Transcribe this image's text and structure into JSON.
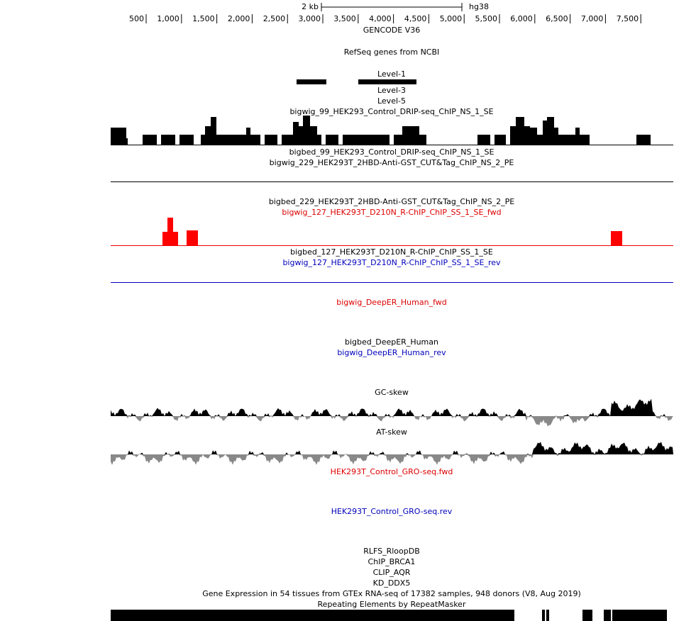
{
  "ruler": {
    "scale": "2 kb",
    "assembly": "hg38",
    "ticks": [
      "500",
      "1,000",
      "1,500",
      "2,000",
      "2,500",
      "3,000",
      "3,500",
      "4,000",
      "4,500",
      "5,000",
      "5,500",
      "6,000",
      "6,500",
      "7,000",
      "7,500"
    ]
  },
  "tracks": [
    {
      "label": "GENCODE V36",
      "color": "#000000"
    },
    {
      "label": "RefSeq genes from NCBI",
      "color": "#000000"
    },
    {
      "label": "Level-1",
      "color": "#000000"
    },
    {
      "label": "Level-3",
      "color": "#000000"
    },
    {
      "label": "Level-5",
      "color": "#000000"
    },
    {
      "label": "bigwig_99_HEK293_Control_DRIP-seq_ChIP_NS_1_SE",
      "color": "#000000"
    },
    {
      "label": "bigbed_99_HEK293_Control_DRIP-seq_ChIP_NS_1_SE",
      "color": "#000000"
    },
    {
      "label": "bigwig_229_HEK293T_2HBD-Anti-GST_CUT&Tag_ChIP_NS_2_PE",
      "color": "#000000"
    },
    {
      "label": "bigbed_229_HEK293T_2HBD-Anti-GST_CUT&Tag_ChIP_NS_2_PE",
      "color": "#000000"
    },
    {
      "label": "bigwig_127_HEK293T_D210N_R-ChIP_ChIP_SS_1_SE_fwd",
      "color": "#dd0000"
    },
    {
      "label": "bigbed_127_HEK293T_D210N_R-ChIP_ChIP_SS_1_SE",
      "color": "#000000"
    },
    {
      "label": "bigwig_127_HEK293T_D210N_R-ChIP_ChIP_SS_1_SE_rev",
      "color": "#0000bb"
    },
    {
      "label": "bigwig_DeepER_Human_fwd",
      "color": "#dd0000"
    },
    {
      "label": "bigbed_DeepER_Human",
      "color": "#000000"
    },
    {
      "label": "bigwig_DeepER_Human_rev",
      "color": "#0000bb"
    },
    {
      "label": "GC-skew",
      "color": "#000000"
    },
    {
      "label": "AT-skew",
      "color": "#000000"
    },
    {
      "label": "HEK293T_Control_GRO-seq.fwd",
      "color": "#dd0000"
    },
    {
      "label": "HEK293T_Control_GRO-seq.rev",
      "color": "#0000bb"
    },
    {
      "label": "RLFS_RloopDB",
      "color": "#000000"
    },
    {
      "label": "ChIP_BRCA1",
      "color": "#000000"
    },
    {
      "label": "CLIP_AQR",
      "color": "#000000"
    },
    {
      "label": "KD_DDX5",
      "color": "#000000"
    },
    {
      "label": "Gene Expression in 54 tissues from GTEx RNA-seq of 17382 samples, 948 donors (V8, Aug 2019)",
      "color": "#000000"
    },
    {
      "label": "Repeating Elements by RepeatMasker",
      "color": "#000000"
    }
  ]
}
